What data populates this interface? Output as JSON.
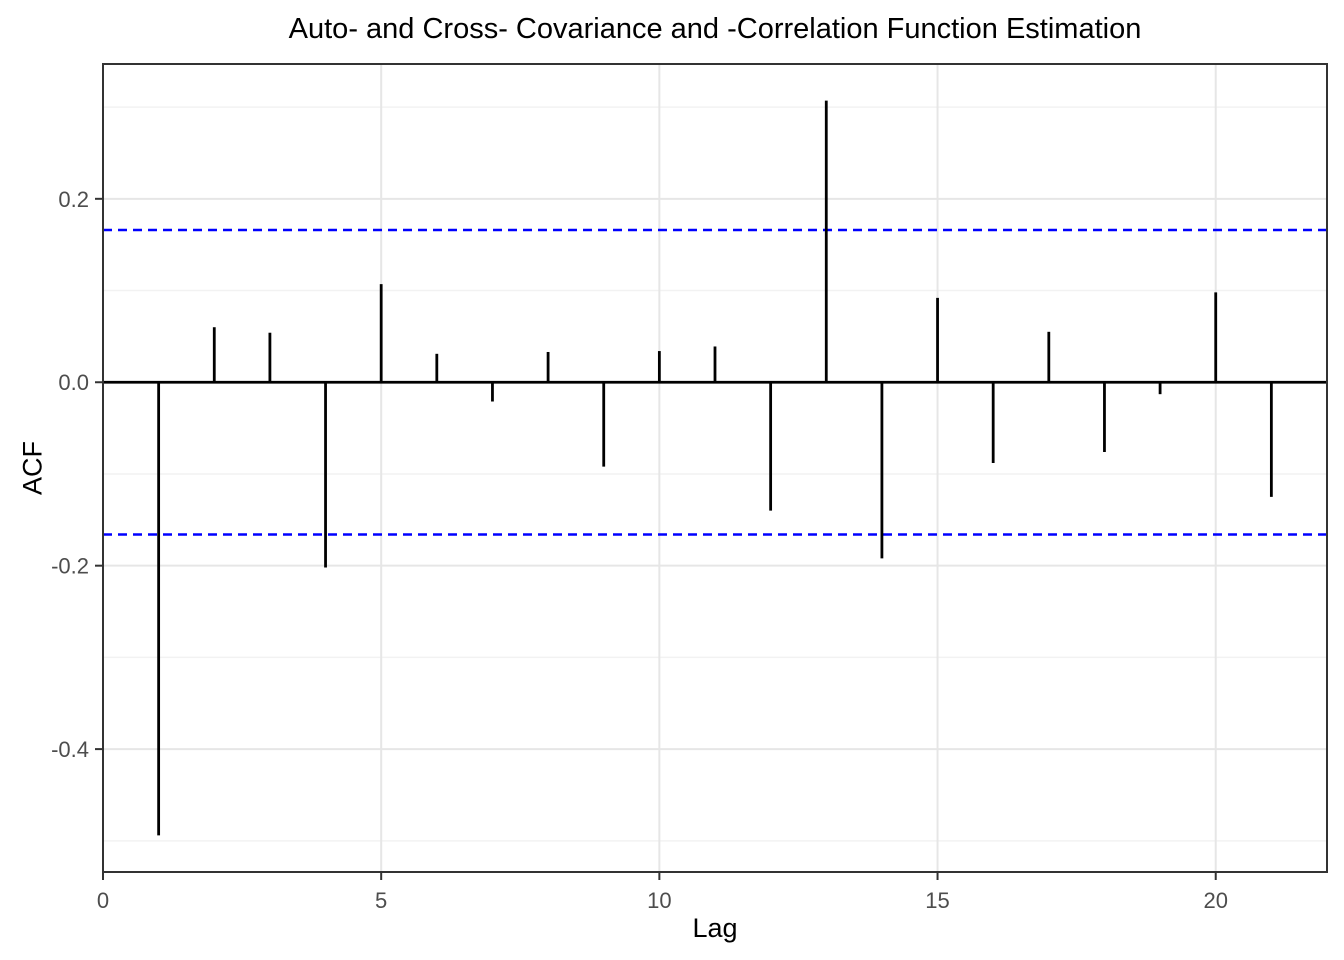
{
  "chart_data": {
    "type": "bar",
    "subtype": "acf-spike-plot",
    "title": "Auto- and Cross- Covariance and -Correlation Function Estimation",
    "xlabel": "Lag",
    "ylabel": "ACF",
    "x": [
      1,
      2,
      3,
      4,
      5,
      6,
      7,
      8,
      9,
      10,
      11,
      12,
      13,
      14,
      15,
      16,
      17,
      18,
      19,
      20,
      21
    ],
    "values": [
      -0.494,
      0.06,
      0.054,
      -0.202,
      0.107,
      0.031,
      -0.021,
      0.033,
      -0.092,
      0.034,
      0.039,
      -0.14,
      0.307,
      -0.192,
      0.092,
      -0.088,
      0.055,
      -0.076,
      -0.013,
      0.098,
      -0.125
    ],
    "confidence_bounds": [
      0.166,
      -0.166
    ],
    "xlim": [
      0,
      22
    ],
    "ylim": [
      -0.534,
      0.347
    ],
    "x_ticks": [
      0,
      5,
      10,
      15,
      20
    ],
    "x_tick_labels": [
      "0",
      "5",
      "10",
      "15",
      "20"
    ],
    "y_ticks": [
      0.2,
      0.0,
      -0.2,
      -0.4
    ],
    "y_tick_labels": [
      "0.2",
      "0.0",
      "-0.2",
      "-0.4"
    ],
    "y_minor_gridlines": [
      0.3,
      0.1,
      -0.1,
      -0.3,
      -0.5
    ],
    "grid": "horizontal major+minor, vertical major only",
    "legend": "none",
    "colors": {
      "background": "#FFFFFF",
      "spike_line": "#000000",
      "confidence_line": "#0000FF",
      "panel_border": "#333333",
      "grid_major": "#E6E6E6",
      "grid_minor": "#F2F2F2",
      "tick_label": "#4D4D4D",
      "axis_title": "#000000"
    }
  }
}
